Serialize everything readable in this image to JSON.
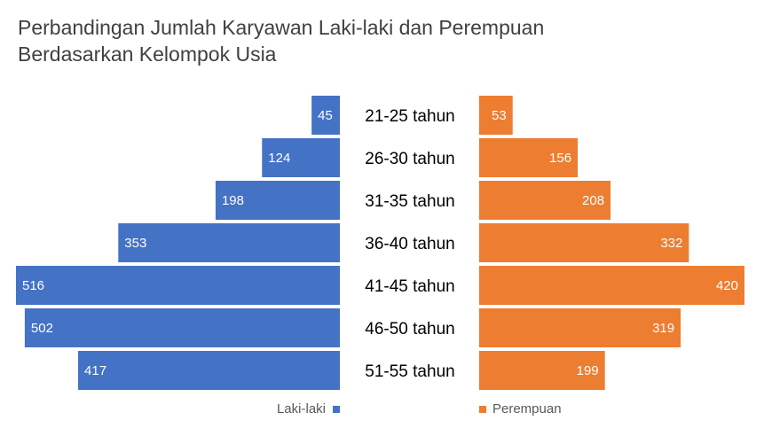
{
  "chart_data": {
    "type": "bar",
    "title_line1": "Perbandingan Jumlah Karyawan Laki-laki dan Perempuan",
    "title_line2": "Berdasarkan Kelompok Usia",
    "categories": [
      "21-25 tahun",
      "26-30 tahun",
      "31-35 tahun",
      "36-40 tahun",
      "41-45 tahun",
      "46-50 tahun",
      "51-55 tahun"
    ],
    "series": [
      {
        "name": "Laki-laki",
        "color": "#4472c4",
        "values": [
          45,
          124,
          198,
          353,
          516,
          502,
          417
        ]
      },
      {
        "name": "Perempuan",
        "color": "#ed7d31",
        "values": [
          53,
          156,
          208,
          332,
          420,
          319,
          199
        ]
      }
    ],
    "orientation": "horizontal-butterfly",
    "data_labels": true,
    "grid": false,
    "legend_position": "bottom"
  }
}
